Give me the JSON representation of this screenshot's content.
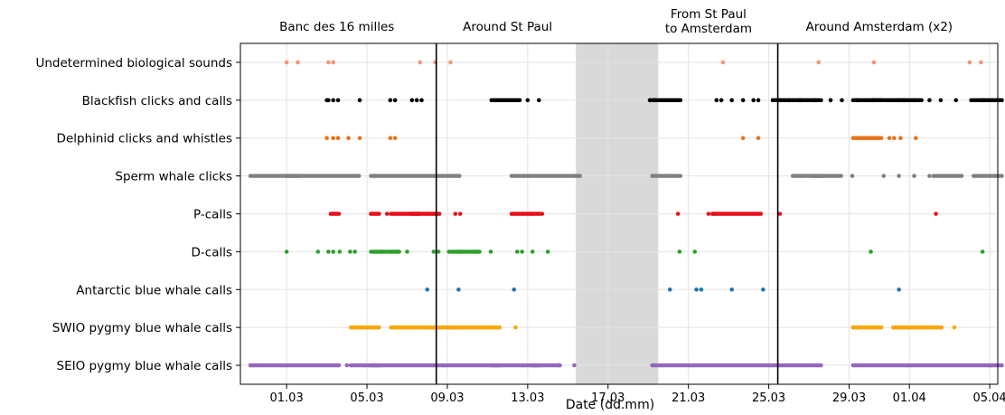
{
  "chart_data": {
    "type": "scatter",
    "xlabel": "Date (dd.mm)",
    "ylabel": "",
    "title": "",
    "x_ticks": [
      "01.03",
      "05.03",
      "09.03",
      "13.03",
      "17.03",
      "21.03",
      "25.03",
      "29.03",
      "01.04",
      "05.04"
    ],
    "x_range": [
      "28.02",
      "05.04"
    ],
    "grid": true,
    "gap_period": [
      "16.03",
      "19.03"
    ],
    "transitions": [
      "08.03",
      "25.03"
    ],
    "sections": [
      {
        "label": "Banc des 16 milles",
        "from": "28.02",
        "to": "08.03"
      },
      {
        "label": "Around St Paul",
        "from": "08.03",
        "to": "16.03"
      },
      {
        "label": "From St Paul\nto Amsterdam",
        "from": "19.03",
        "to": "25.03"
      },
      {
        "label": "Around Amsterdam (x2)",
        "from": "25.03",
        "to": "05.04"
      }
    ],
    "series": [
      {
        "name": "Undetermined biological sounds",
        "color": "#f4967a",
        "points": [
          "01.03",
          "01.03",
          "03.03",
          "03.03",
          "07.03",
          "08.03",
          "09.03",
          "22.03",
          "27.03",
          "30.03",
          "04.04",
          "04.04"
        ],
        "segments": []
      },
      {
        "name": "Blackfish clicks and calls",
        "color": "#000000",
        "points": [
          "03.03",
          "03.03",
          "03.03",
          "03.03",
          "04.03",
          "06.03",
          "06.03",
          "07.03",
          "07.03",
          "07.03",
          "13.03",
          "13.03",
          "19.03",
          "19.03",
          "22.03",
          "22.03",
          "23.03",
          "23.03",
          "24.03",
          "24.03",
          "26.03",
          "26.03",
          "27.03",
          "28.03",
          "28.03",
          "29.03",
          "30.03",
          "31.03",
          "31.03",
          "01.04",
          "02.04",
          "02.04",
          "03.04",
          "04.04",
          "04.04",
          "05.04"
        ],
        "segments": [
          [
            "11.03",
            "12.03"
          ],
          [
            "19.03",
            "20.03"
          ],
          [
            "25.03",
            "27.03"
          ],
          [
            "29.03",
            "30.03"
          ],
          [
            "30.03",
            "01.04"
          ],
          [
            "04.04",
            "05.04"
          ]
        ]
      },
      {
        "name": "Delphinid clicks and whistles",
        "color": "#e8731a",
        "points": [
          "03.03",
          "03.03",
          "03.03",
          "04.03",
          "04.03",
          "06.03",
          "06.03",
          "23.03",
          "24.03",
          "31.03",
          "31.03",
          "31.03",
          "01.04"
        ],
        "segments": [
          [
            "29.03",
            "30.03"
          ]
        ]
      },
      {
        "name": "Sperm whale clicks",
        "color": "#808080",
        "points": [
          "01.03",
          "04.03",
          "05.03",
          "20.03",
          "26.03",
          "26.03",
          "29.03",
          "30.03",
          "31.03",
          "01.04",
          "02.04"
        ],
        "segments": [
          [
            "28.02",
            "01.03"
          ],
          [
            "01.03",
            "04.03"
          ],
          [
            "05.03",
            "09.03"
          ],
          [
            "12.03",
            "15.03"
          ],
          [
            "19.03",
            "20.03"
          ],
          [
            "26.03",
            "27.03"
          ],
          [
            "27.03",
            "28.03"
          ],
          [
            "02.04",
            "03.04"
          ],
          [
            "04.04",
            "05.04"
          ]
        ]
      },
      {
        "name": "P-calls",
        "color": "#e8101a",
        "points": [
          "06.03",
          "07.03",
          "08.03",
          "08.03",
          "09.03",
          "09.03",
          "13.03",
          "13.03",
          "20.03",
          "22.03",
          "22.03",
          "25.03",
          "02.04"
        ],
        "segments": [
          [
            "03.03",
            "03.03"
          ],
          [
            "05.03",
            "05.03"
          ],
          [
            "06.03",
            "07.03"
          ],
          [
            "07.03",
            "08.03"
          ],
          [
            "12.03",
            "13.03"
          ],
          [
            "22.03",
            "24.03"
          ]
        ]
      },
      {
        "name": "D-calls",
        "color": "#2ca02c",
        "points": [
          "01.03",
          "02.03",
          "03.03",
          "03.03",
          "03.03",
          "04.03",
          "04.03",
          "05.03",
          "06.03",
          "06.03",
          "07.03",
          "08.03",
          "08.03",
          "09.03",
          "09.03",
          "10.03",
          "11.03",
          "12.03",
          "12.03",
          "13.03",
          "14.03",
          "20.03",
          "21.03",
          "30.03",
          "04.04"
        ],
        "segments": [
          [
            "05.03",
            "06.03"
          ],
          [
            "09.03",
            "10.03"
          ]
        ]
      },
      {
        "name": "Antarctic blue whale calls",
        "color": "#1f77b4",
        "points": [
          "08.03",
          "09.03",
          "12.03",
          "20.03",
          "21.03",
          "21.03",
          "23.03",
          "24.03",
          "31.03"
        ],
        "segments": []
      },
      {
        "name": "SWIO pygmy blue whale calls",
        "color": "#ffa500",
        "points": [
          "05.03",
          "05.03",
          "06.03",
          "08.03",
          "09.03",
          "12.03",
          "30.03",
          "31.03",
          "31.03",
          "03.04"
        ],
        "segments": [
          [
            "04.03",
            "05.03"
          ],
          [
            "06.03",
            "08.03"
          ],
          [
            "08.03",
            "09.03"
          ],
          [
            "09.03",
            "11.03"
          ],
          [
            "29.03",
            "30.03"
          ],
          [
            "31.03",
            "02.04"
          ]
        ]
      },
      {
        "name": "SEIO pygmy blue whale calls",
        "color": "#9467bd",
        "points": [
          "04.03",
          "14.03",
          "15.03",
          "05.04"
        ],
        "segments": [
          [
            "28.02",
            "03.03"
          ],
          [
            "04.03",
            "05.03"
          ],
          [
            "05.03",
            "11.03"
          ],
          [
            "11.03",
            "13.03"
          ],
          [
            "13.03",
            "14.03"
          ],
          [
            "19.03",
            "27.03"
          ],
          [
            "29.03",
            "05.04"
          ]
        ]
      }
    ]
  }
}
